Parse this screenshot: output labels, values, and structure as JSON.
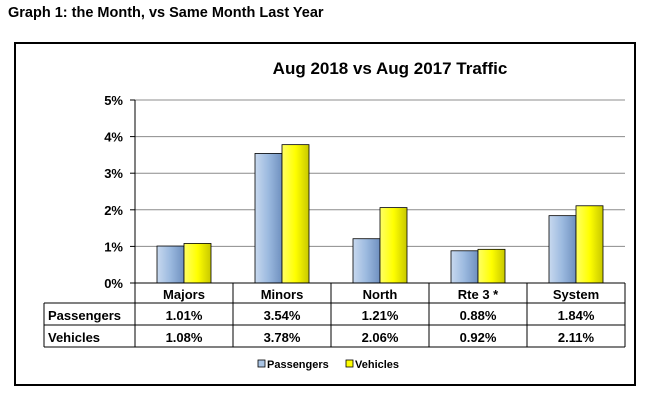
{
  "caption": "Graph 1: the Month, vs Same Month Last Year",
  "chart_data": {
    "type": "bar",
    "title": "Aug 2018 vs Aug 2017 Traffic",
    "categories": [
      "Majors",
      "Minors",
      "North",
      "Rte 3 *",
      "System"
    ],
    "series": [
      {
        "name": "Passengers",
        "color": "#a9c4e4",
        "values": [
          1.01,
          3.54,
          1.21,
          0.88,
          1.84
        ],
        "labels": [
          "1.01%",
          "3.54%",
          "1.21%",
          "0.88%",
          "1.84%"
        ]
      },
      {
        "name": "Vehicles",
        "color": "#ffff00",
        "values": [
          1.08,
          3.78,
          2.06,
          0.92,
          2.11
        ],
        "labels": [
          "1.08%",
          "3.78%",
          "2.06%",
          "0.92%",
          "2.11%"
        ]
      }
    ],
    "ylim": [
      0,
      5
    ],
    "yticks": [
      0,
      1,
      2,
      3,
      4,
      5
    ],
    "ytick_labels": [
      "0%",
      "1%",
      "2%",
      "3%",
      "4%",
      "5%"
    ],
    "grid": true,
    "legend": "bottom",
    "data_table": true
  }
}
